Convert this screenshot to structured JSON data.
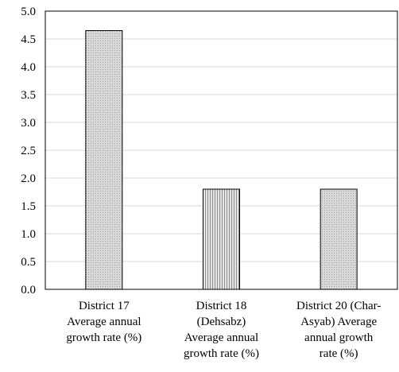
{
  "chart_data": {
    "type": "bar",
    "categories": [
      [
        "District 17",
        "Average annual",
        "growth rate (%)"
      ],
      [
        "District 18",
        "(Dehsabz)",
        "Average annual",
        "growth rate (%)"
      ],
      [
        "District 20 (Char-",
        "Asyab) Average",
        "annual growth",
        "rate (%)"
      ]
    ],
    "values": [
      4.65,
      1.8,
      1.8
    ],
    "ylim": [
      0,
      5
    ],
    "yticks": [
      "0.0",
      "0.5",
      "1.0",
      "1.5",
      "2.0",
      "2.5",
      "3.0",
      "3.5",
      "4.0",
      "4.5",
      "5.0"
    ],
    "grid": true,
    "legend": "none",
    "bar_fill": "#d9d9d9",
    "bar_stroke": "#000000",
    "grid_color": "#d9d9d9"
  }
}
